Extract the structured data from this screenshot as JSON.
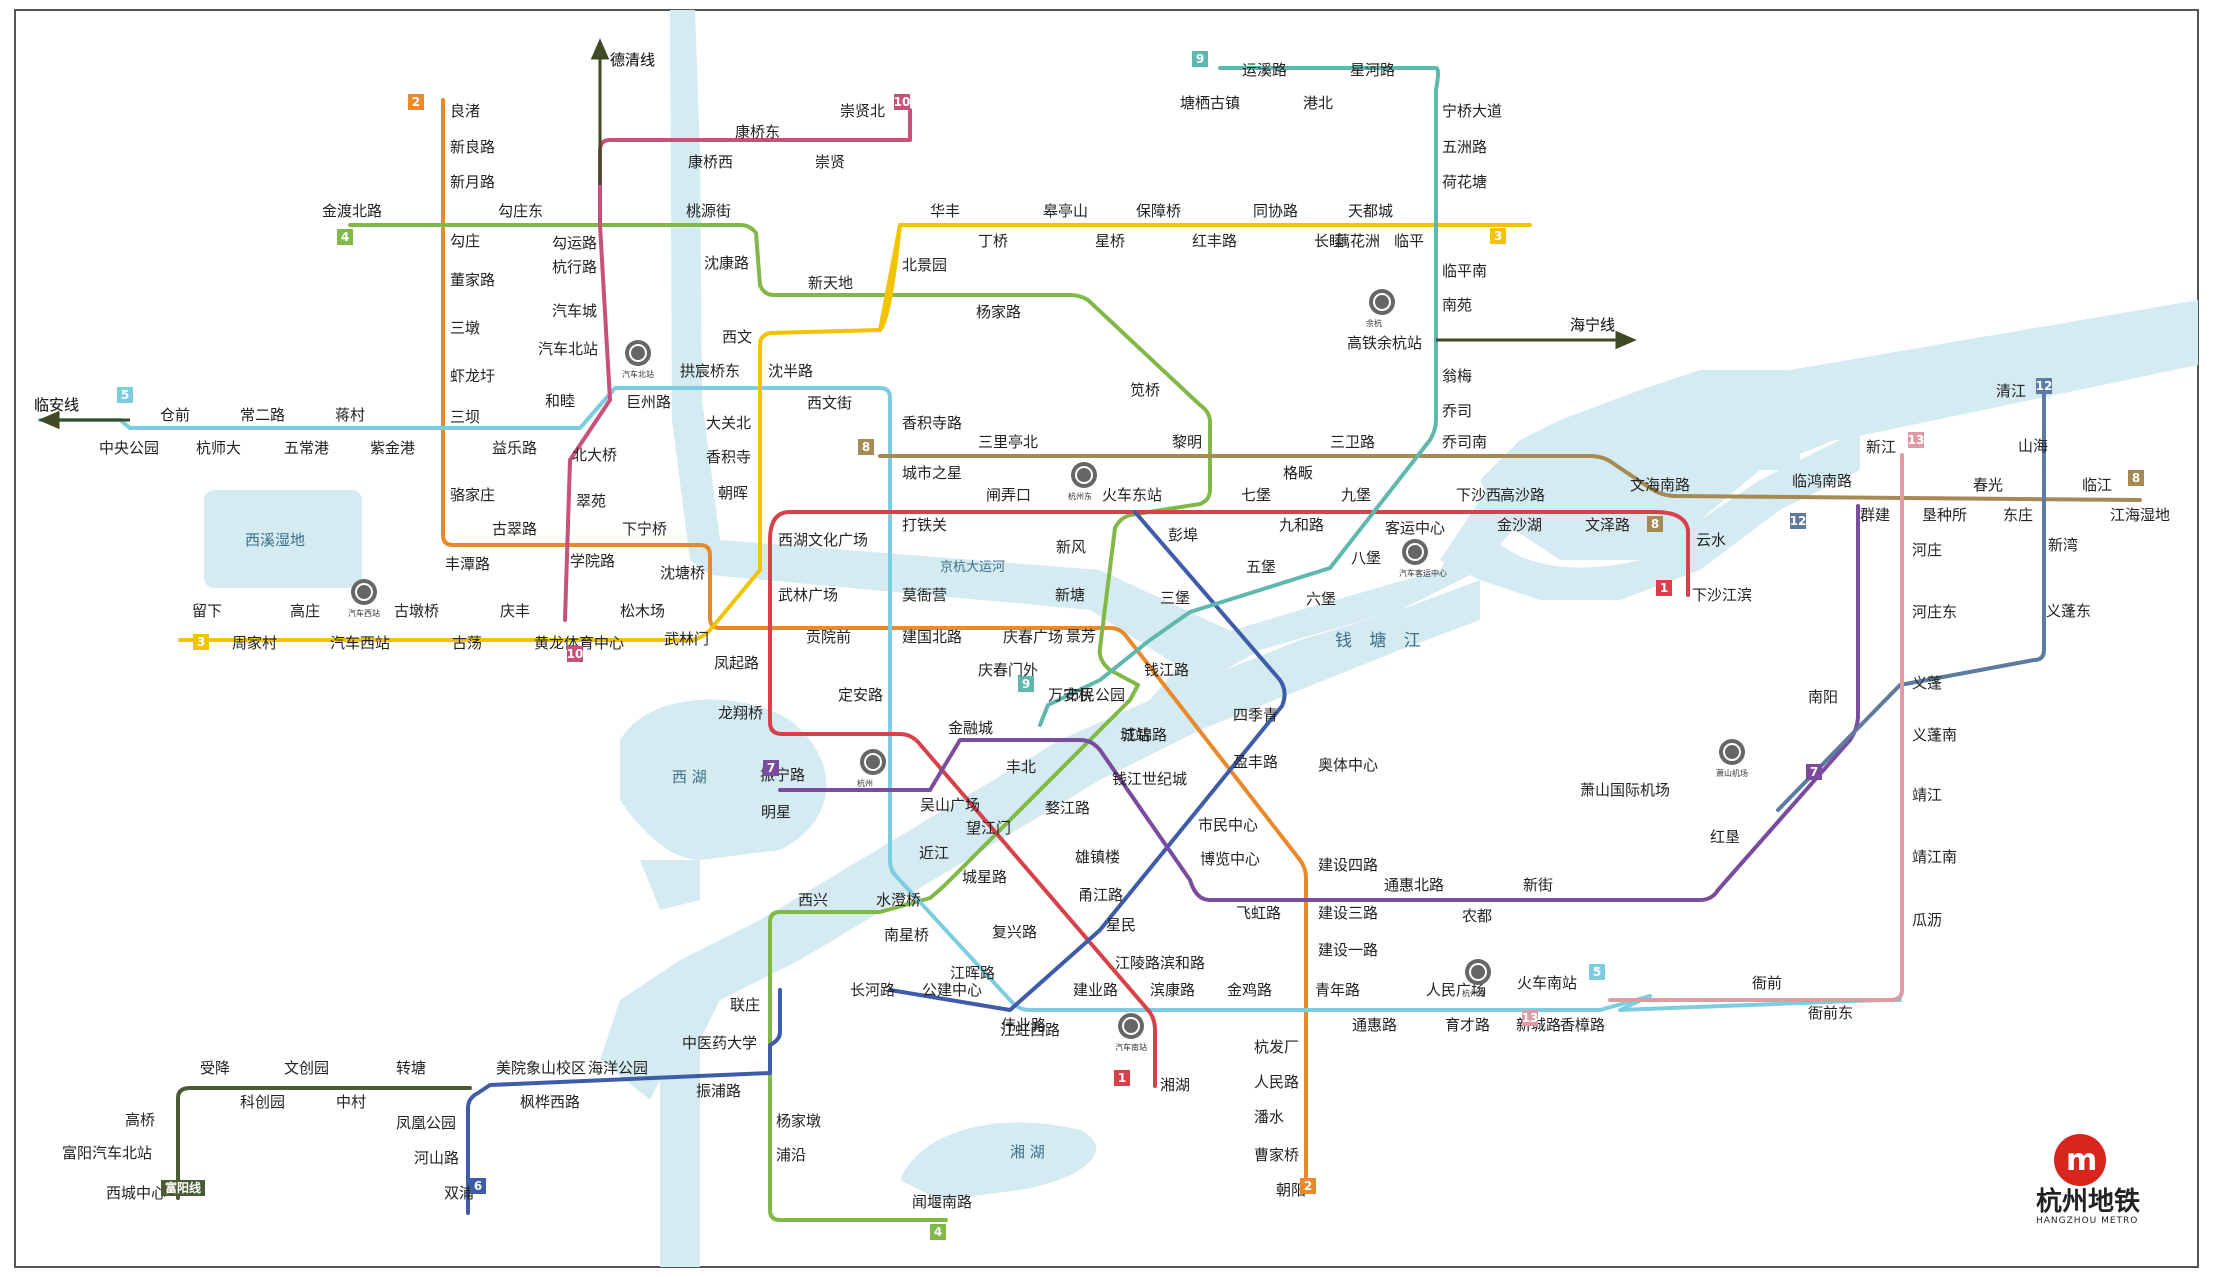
{
  "map": {
    "logo": {
      "name": "杭州地铁",
      "sub": "HANGZHOU METRO"
    },
    "water": [
      "钱 塘 江",
      "西溪湿地",
      "西 湖",
      "湘 湖",
      "京杭大运河"
    ],
    "external": [
      "德清线",
      "临安线",
      "海宁线"
    ],
    "hubs": [
      "汽车北站",
      "杭州东",
      "余杭",
      "汽车西站",
      "杭州",
      "萧山机场",
      "汽车南站",
      "杭州南",
      "汽车客运中心"
    ],
    "line_colors": {
      "1": "#d8404a",
      "2": "#e98a2a",
      "3": "#f2c400",
      "4": "#80b947",
      "5": "#7ccde0",
      "6": "#3f5ca8",
      "7": "#7a4c9d",
      "8": "#a68a54",
      "9": "#5fb8ae",
      "10": "#c8517a",
      "12": "#5d7aa0",
      "13": "#e09aa4",
      "fy": "#4a5a33"
    },
    "badges": [
      {
        "t": "2",
        "c": "#e98a2a"
      },
      {
        "t": "4",
        "c": "#80b947"
      },
      {
        "t": "5",
        "c": "#7ccde0"
      },
      {
        "t": "3",
        "c": "#f2c400"
      },
      {
        "t": "10",
        "c": "#c8517a"
      },
      {
        "t": "9",
        "c": "#5fb8ae"
      },
      {
        "t": "3",
        "c": "#f2c400"
      },
      {
        "t": "8",
        "c": "#a68a54"
      },
      {
        "t": "8",
        "c": "#a68a54"
      },
      {
        "t": "1",
        "c": "#d8404a"
      },
      {
        "t": "7",
        "c": "#7a4c9d"
      },
      {
        "t": "12",
        "c": "#5d7aa0"
      },
      {
        "t": "13",
        "c": "#e09aa4"
      },
      {
        "t": "8",
        "c": "#a68a54"
      },
      {
        "t": "9",
        "c": "#5fb8ae"
      },
      {
        "t": "10",
        "c": "#c8517a"
      },
      {
        "t": "7",
        "c": "#7a4c9d"
      },
      {
        "t": "12",
        "c": "#5d7aa0"
      },
      {
        "t": "1",
        "c": "#d8404a"
      },
      {
        "t": "5",
        "c": "#7ccde0"
      },
      {
        "t": "13",
        "c": "#e09aa4"
      },
      {
        "t": "6",
        "c": "#3f5ca8"
      },
      {
        "t": "2",
        "c": "#e98a2a"
      },
      {
        "t": "4",
        "c": "#80b947"
      },
      {
        "t": "富阳线",
        "c": "#4a5a33"
      }
    ],
    "stations": [
      "良渚",
      "新良路",
      "新月路",
      "金渡北路",
      "勾庄东",
      "勾运路",
      "桃源街",
      "勾庄",
      "杭行路",
      "董家路",
      "汽车城",
      "三墩",
      "汽车北站",
      "虾龙圩",
      "和睦",
      "巨州路",
      "拱宸桥东",
      "沈半路",
      "三坝",
      "临安线",
      "仓前",
      "常二路",
      "蒋村",
      "中央公园",
      "杭师大",
      "五常港",
      "紫金港",
      "益乐路",
      "北大桥",
      "骆家庄",
      "翠苑",
      "古翠路",
      "学院路",
      "下宁桥",
      "丰潭路",
      "沈塘桥",
      "留下",
      "高庄",
      "古墩桥",
      "庆丰",
      "松木场",
      "周家村",
      "汽车西站",
      "古荡",
      "黄龙体育中心",
      "武林门",
      "凤起路",
      "德清线",
      "崇贤北",
      "康桥东",
      "康桥西",
      "崇贤",
      "沈康路",
      "新天地",
      "西文",
      "北景园",
      "大关北",
      "香积寺",
      "朝晖",
      "西文街",
      "香积寺路",
      "华丰",
      "丁桥",
      "皋亭山",
      "星桥",
      "保障桥",
      "红丰路",
      "同协路",
      "长睦",
      "天都城",
      "藕花洲",
      "临平",
      "杨家路",
      "笕桥",
      "黎明",
      "运溪路",
      "星河路",
      "塘栖古镇",
      "港北",
      "宁桥大道",
      "五洲路",
      "荷花塘",
      "临平南",
      "南苑",
      "高铁余杭站",
      "海宁线",
      "翁梅",
      "乔司",
      "乔司南",
      "城市之星",
      "三里亭北",
      "三卫路",
      "格畈",
      "闸弄口",
      "火车东站",
      "七堡",
      "九堡",
      "下沙西",
      "高沙路",
      "文海南路",
      "云水",
      "下沙江滨",
      "九和路",
      "金沙湖",
      "文泽路",
      "客运中心",
      "八堡",
      "彭埠",
      "新风",
      "五堡",
      "六堡",
      "三堡",
      "新塘",
      "景芳",
      "西湖文化广场",
      "打铁关",
      "武林广场",
      "莫衙营",
      "贡院前",
      "建国北路",
      "庆春广场",
      "庆春门外",
      "钱江路",
      "万安桥",
      "定安路",
      "龙翔桥",
      "市民公园",
      "金融城",
      "城站",
      "四季青",
      "江锦路",
      "丰北",
      "钱江世纪城",
      "盈丰路",
      "市民中心",
      "博览中心",
      "奥体中心",
      "建设四路",
      "飞虹路",
      "振宁路",
      "明星",
      "吴山广场",
      "望江门",
      "婺江路",
      "近江",
      "城星路",
      "雄镇楼",
      "甬江路",
      "星民",
      "江陵路",
      "滨和路",
      "西兴",
      "水澄桥",
      "南星桥",
      "复兴路",
      "江晖路",
      "长河路",
      "公建中心",
      "伟业路",
      "建业路",
      "江虹西路",
      "滨康路",
      "金鸡路",
      "青年路",
      "人民广场",
      "通惠路",
      "育才路",
      "火车南站",
      "新城路",
      "香樟路",
      "联庄",
      "中医药大学",
      "振浦路",
      "杨家墩",
      "浦沿",
      "闻堰南路",
      "湘湖",
      "杭发厂",
      "人民路",
      "潘水",
      "曹家桥",
      "朝阳",
      "建设三路",
      "建设一路",
      "通惠北路",
      "农都",
      "新街",
      "红垦",
      "萧山国际机场",
      "南阳",
      "临鸿南路",
      "群建",
      "新江",
      "衙前",
      "衙前东",
      "河庄",
      "河庄东",
      "义蓬",
      "义蓬南",
      "靖江",
      "靖江南",
      "瓜沥",
      "垦种所",
      "春光",
      "东庄",
      "新湾",
      "义蓬东",
      "清江",
      "山海",
      "临江",
      "江海湿地",
      "受降",
      "文创园",
      "转塘",
      "美院象山校区",
      "海洋公园",
      "科创园",
      "中村",
      "枫桦西路",
      "高桥",
      "凤凰公园",
      "富阳汽车北站",
      "河山路",
      "西城中心",
      "双浦"
    ]
  }
}
